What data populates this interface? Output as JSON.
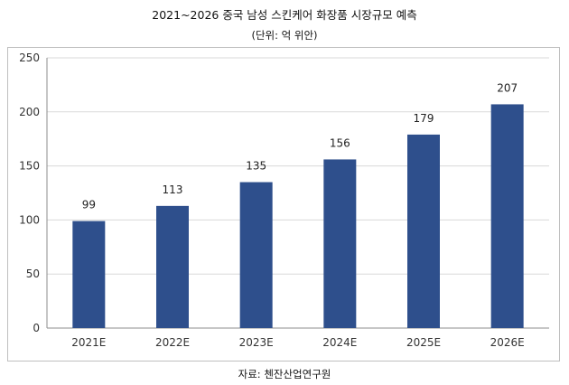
{
  "title": "2021~2026 중국 남성 스킨케어 화장품 시장규모 예측",
  "unit_note": "(단위: 억 위안)",
  "source": "자료: 첸잔산업연구원",
  "colors": {
    "bar": "#2e4f8c",
    "grid": "#d9d9d9",
    "axis": "#8c8c8c"
  },
  "chart_data": {
    "type": "bar",
    "categories": [
      "2021E",
      "2022E",
      "2023E",
      "2024E",
      "2025E",
      "2026E"
    ],
    "values": [
      99,
      113,
      135,
      156,
      179,
      207
    ],
    "data_labels": [
      "99",
      "113",
      "135",
      "156",
      "179",
      "207"
    ],
    "yticks": [
      0,
      50,
      100,
      150,
      200,
      250
    ],
    "ytick_labels": [
      "0",
      "50",
      "100",
      "150",
      "200",
      "250"
    ],
    "ylim": [
      0,
      250
    ],
    "grid": true,
    "legend": "none",
    "xlabel": "",
    "ylabel": ""
  }
}
